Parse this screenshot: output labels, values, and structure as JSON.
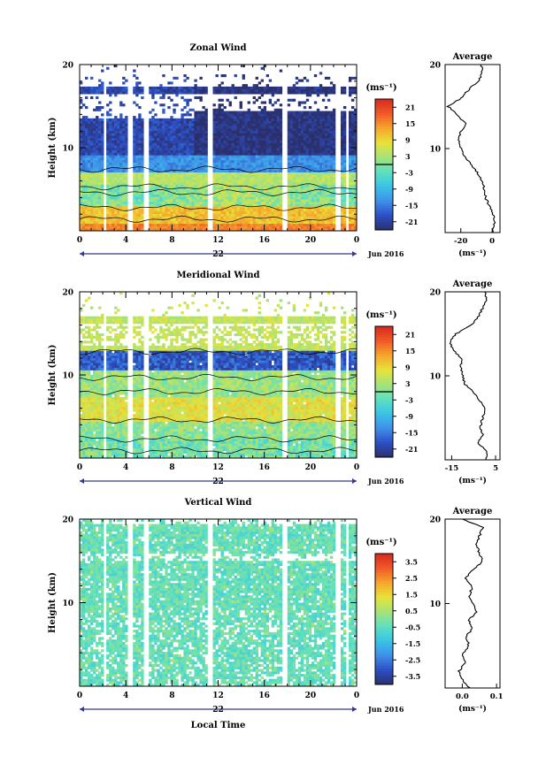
{
  "colors": {
    "stops": [
      "#2b2f6a",
      "#2c4fc4",
      "#3f8fe8",
      "#39c3e6",
      "#5ee0c0",
      "#a6e27a",
      "#e6e33a",
      "#f6a72c",
      "#f25a2a",
      "#d62a1f"
    ]
  },
  "chart_data": [
    {
      "type": "heatmap",
      "title": "Zonal Wind",
      "xlabel": "",
      "ylabel": "Height (km)",
      "xlim": [
        0,
        24
      ],
      "ylim": [
        0,
        20
      ],
      "x_ticks": [
        "0",
        "4",
        "8",
        "12",
        "16",
        "20",
        "0"
      ],
      "y_ticks": [
        "20",
        "10"
      ],
      "date_day": "22",
      "date_label": "Jun 2016",
      "colorbar": {
        "unit": "(ms⁻¹)",
        "range": [
          -24,
          24
        ],
        "ticks": [
          "21",
          "15",
          "9",
          "3",
          "-3",
          "-9",
          "-15",
          "-21"
        ],
        "marker": 0
      },
      "profile": [
        [
          0,
          0.4
        ],
        [
          1,
          1.5
        ],
        [
          2,
          1.0
        ],
        [
          3,
          -1.0
        ],
        [
          4,
          -4.0
        ],
        [
          5,
          -5.0
        ],
        [
          6,
          -6.0
        ],
        [
          7,
          -9.0
        ],
        [
          8,
          -13.0
        ],
        [
          9,
          -17.0
        ],
        [
          10,
          -20.0
        ],
        [
          11,
          -21.5
        ],
        [
          12,
          -20.0
        ],
        [
          13,
          -17.0
        ],
        [
          14,
          -22.0
        ],
        [
          15,
          -28.0
        ],
        [
          16,
          -20.0
        ],
        [
          17,
          -15.0
        ],
        [
          18,
          -9.0
        ],
        [
          19,
          -6.0
        ],
        [
          20,
          -7.0
        ]
      ],
      "profile_title": "Average",
      "profile_x_ticks": [
        "-20",
        "0"
      ],
      "profile_xlim": [
        -30,
        5
      ],
      "profile_y_ticks": [
        "20",
        "10"
      ],
      "profile_xlabel": "(ms⁻¹)",
      "gap_bands": [
        [
          0.0,
          0.0
        ]
      ]
    },
    {
      "type": "heatmap",
      "title": "Meridional Wind",
      "xlabel": "",
      "ylabel": "Height (km)",
      "xlim": [
        0,
        24
      ],
      "ylim": [
        0,
        20
      ],
      "x_ticks": [
        "0",
        "4",
        "8",
        "12",
        "16",
        "20",
        "0"
      ],
      "y_ticks": [
        "20",
        "10"
      ],
      "date_day": "22",
      "date_label": "Jun 2016",
      "colorbar": {
        "unit": "(ms⁻¹)",
        "range": [
          -24,
          24
        ],
        "ticks": [
          "21",
          "15",
          "9",
          "3",
          "-3",
          "-9",
          "-15",
          "-21"
        ],
        "marker": 0
      },
      "profile": [
        [
          0,
          0.5
        ],
        [
          1,
          1.0
        ],
        [
          2,
          -3.0
        ],
        [
          3,
          -1.0
        ],
        [
          4,
          -2.0
        ],
        [
          5,
          -1.0
        ],
        [
          6,
          0.5
        ],
        [
          7,
          -2.0
        ],
        [
          8,
          -5.0
        ],
        [
          9,
          -9.0
        ],
        [
          10,
          -10.0
        ],
        [
          11,
          -11.0
        ],
        [
          12,
          -10.0
        ],
        [
          13,
          -14.0
        ],
        [
          14,
          -16.0
        ],
        [
          15,
          -13.0
        ],
        [
          16,
          -6.0
        ],
        [
          17,
          -3.0
        ],
        [
          18,
          -1.0
        ],
        [
          19,
          1.0
        ],
        [
          20,
          0.0
        ]
      ],
      "profile_title": "Average",
      "profile_x_ticks": [
        "-15",
        "5"
      ],
      "profile_xlim": [
        -18,
        7
      ],
      "profile_y_ticks": [
        "20",
        "10"
      ],
      "profile_xlabel": "(ms⁻¹)"
    },
    {
      "type": "heatmap",
      "title": "Vertical Wind",
      "xlabel": "Local Time",
      "ylabel": "Height (km)",
      "xlim": [
        0,
        24
      ],
      "ylim": [
        0,
        20
      ],
      "x_ticks": [
        "0",
        "4",
        "8",
        "12",
        "16",
        "20",
        "0"
      ],
      "y_ticks": [
        "20",
        "10"
      ],
      "date_day": "22",
      "date_label": "Jun 2016",
      "colorbar": {
        "unit": "(ms⁻¹)",
        "range": [
          -4,
          4
        ],
        "ticks": [
          "3.5",
          "2.5",
          "1.5",
          "0.5",
          "-0.5",
          "-1.5",
          "-2.5",
          "-3.5"
        ]
      },
      "profile": [
        [
          0,
          0.02
        ],
        [
          1,
          0.0
        ],
        [
          2,
          -0.01
        ],
        [
          3,
          0.01
        ],
        [
          4,
          0.0
        ],
        [
          5,
          0.02
        ],
        [
          6,
          0.01
        ],
        [
          7,
          0.03
        ],
        [
          8,
          0.02
        ],
        [
          9,
          0.04
        ],
        [
          10,
          0.03
        ],
        [
          11,
          0.02
        ],
        [
          12,
          0.03
        ],
        [
          13,
          0.01
        ],
        [
          14,
          0.03
        ],
        [
          15,
          0.06
        ],
        [
          16,
          0.05
        ],
        [
          17,
          0.04
        ],
        [
          18,
          0.05
        ],
        [
          19,
          0.06
        ],
        [
          20,
          0.0
        ]
      ],
      "profile_title": "Average",
      "profile_x_ticks": [
        "0.0",
        "0.1"
      ],
      "profile_xlim": [
        -0.05,
        0.11
      ],
      "profile_y_ticks": [
        "20",
        "10"
      ],
      "profile_xlabel": "(ms⁻¹)"
    }
  ]
}
